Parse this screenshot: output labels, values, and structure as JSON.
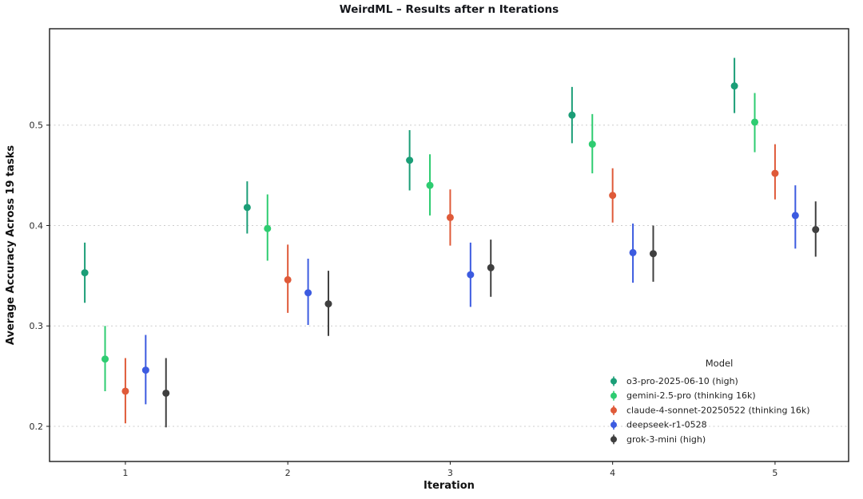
{
  "chart_data": {
    "type": "scatter",
    "title": "WeirdML – Results after n Iterations",
    "xlabel": "Iteration",
    "ylabel": "Average Accuracy Across 19 tasks",
    "x": [
      1,
      2,
      3,
      4,
      5
    ],
    "x_tick_labels": [
      "1",
      "2",
      "3",
      "4",
      "5"
    ],
    "y_ticks": [
      0.2,
      0.3,
      0.4,
      0.5
    ],
    "y_tick_labels": [
      "0.2",
      "0.3",
      "0.4",
      "0.5"
    ],
    "xlim": [
      0.533,
      5.453
    ],
    "ylim": [
      0.165,
      0.596
    ],
    "grid": "horizontal-dashed",
    "grid_color": "#cccccc",
    "dodge_offsets": [
      -0.25,
      -0.125,
      0,
      0.125,
      0.25
    ],
    "legend": {
      "title": "Model",
      "position": "lower-right-inside"
    },
    "series": [
      {
        "name": "o3-pro-2025-06-10 (high)",
        "color": "#1b9e77",
        "y": [
          0.353,
          0.418,
          0.465,
          0.51,
          0.539
        ],
        "y_lo": [
          0.323,
          0.392,
          0.435,
          0.482,
          0.512
        ],
        "y_hi": [
          0.383,
          0.444,
          0.495,
          0.538,
          0.567
        ]
      },
      {
        "name": "gemini-2.5-pro (thinking 16k)",
        "color": "#2ecc71",
        "y": [
          0.267,
          0.397,
          0.44,
          0.481,
          0.503
        ],
        "y_lo": [
          0.235,
          0.365,
          0.41,
          0.452,
          0.473
        ],
        "y_hi": [
          0.3,
          0.431,
          0.471,
          0.511,
          0.532
        ]
      },
      {
        "name": "claude-4-sonnet-20250522 (thinking 16k)",
        "color": "#df5a39",
        "y": [
          0.235,
          0.346,
          0.408,
          0.43,
          0.452
        ],
        "y_lo": [
          0.203,
          0.313,
          0.38,
          0.403,
          0.426
        ],
        "y_hi": [
          0.268,
          0.381,
          0.436,
          0.457,
          0.481
        ]
      },
      {
        "name": "deepseek-r1-0528",
        "color": "#3c5be0",
        "y": [
          0.256,
          0.333,
          0.351,
          0.373,
          0.41
        ],
        "y_lo": [
          0.222,
          0.301,
          0.319,
          0.343,
          0.377
        ],
        "y_hi": [
          0.291,
          0.367,
          0.383,
          0.402,
          0.44
        ]
      },
      {
        "name": "grok-3-mini (high)",
        "color": "#3f3f3f",
        "y": [
          0.233,
          0.322,
          0.358,
          0.372,
          0.396
        ],
        "y_lo": [
          0.199,
          0.29,
          0.329,
          0.344,
          0.369
        ],
        "y_hi": [
          0.268,
          0.355,
          0.386,
          0.4,
          0.424
        ]
      }
    ]
  }
}
